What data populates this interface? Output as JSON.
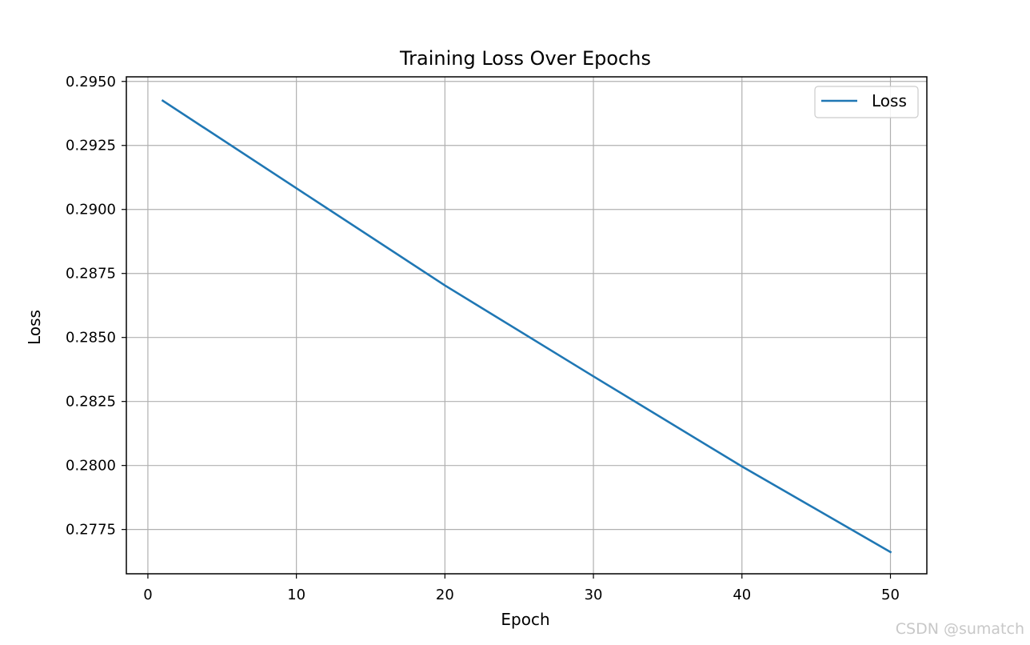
{
  "chart_data": {
    "type": "line",
    "title": "Training Loss Over Epochs",
    "xlabel": "Epoch",
    "ylabel": "Loss",
    "xlim": [
      -1.45,
      52.45
    ],
    "ylim": [
      0.27577,
      0.29518
    ],
    "xticks": [
      0,
      10,
      20,
      30,
      40,
      50
    ],
    "xtick_labels": [
      "0",
      "10",
      "20",
      "30",
      "40",
      "50"
    ],
    "yticks": [
      0.2775,
      0.28,
      0.2825,
      0.285,
      0.2875,
      0.29,
      0.2925,
      0.295
    ],
    "ytick_labels": [
      "0.2775",
      "0.2800",
      "0.2825",
      "0.2850",
      "0.2875",
      "0.2900",
      "0.2925",
      "0.2950"
    ],
    "grid": true,
    "legend_position": "top-right",
    "series": [
      {
        "name": "Loss",
        "color": "#1f77b4",
        "x": [
          1,
          10,
          20,
          30,
          40,
          50
        ],
        "y": [
          0.29425,
          0.29083,
          0.28703,
          0.28348,
          0.27996,
          0.27662
        ]
      }
    ]
  },
  "watermark": "CSDN @sumatch"
}
